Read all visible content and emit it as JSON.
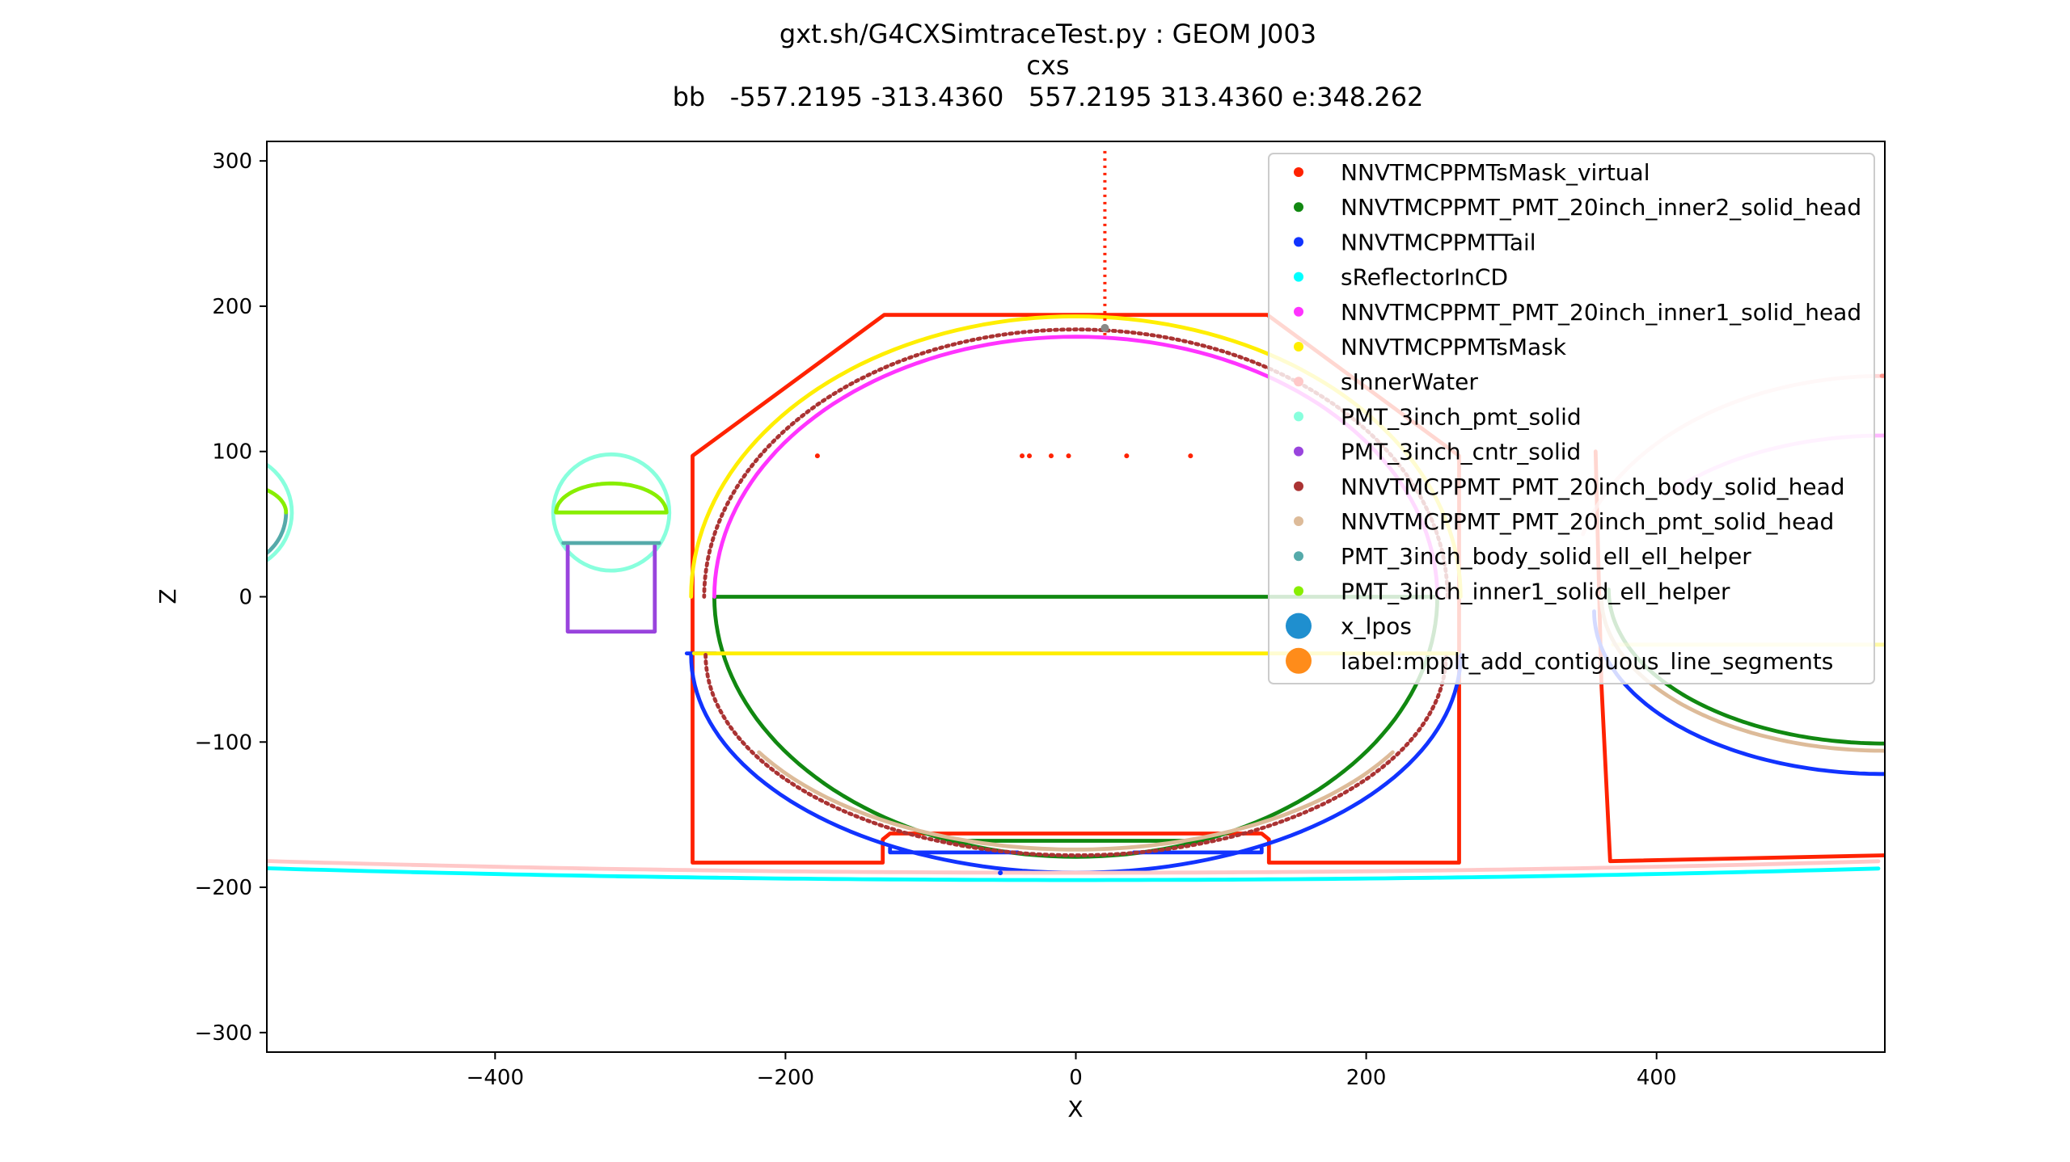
{
  "chart_data": {
    "type": "scatter",
    "title_lines": [
      "gxt.sh/G4CXSimtraceTest.py : GEOM J003",
      "cxs",
      "bb   -557.2195 -313.4360   557.2195 313.4360 e:348.262"
    ],
    "xlabel": "X",
    "ylabel": "Z",
    "xlim": [
      -557.2195,
      557.2195
    ],
    "ylim": [
      -313.436,
      313.436
    ],
    "xticks": [
      -400,
      -200,
      0,
      200,
      400
    ],
    "xtick_labels": [
      "−400",
      "−200",
      "0",
      "200",
      "400"
    ],
    "yticks": [
      -300,
      -200,
      -100,
      0,
      100,
      200,
      300
    ],
    "ytick_labels": [
      "−300",
      "−200",
      "−100",
      "0",
      "100",
      "200",
      "300"
    ],
    "grid": false,
    "legend_position": "top-right",
    "series": [
      {
        "name": "NNVTMCPPMTsMask_virtual",
        "color": "#ff2200",
        "kind": "polyline",
        "width": 2,
        "points": [
          [
            -264,
            -183
          ],
          [
            -264,
            97
          ],
          [
            -132,
            194
          ],
          [
            132,
            194
          ],
          [
            264,
            97
          ],
          [
            264,
            -183
          ],
          [
            133,
            -183
          ],
          [
            133,
            -167
          ],
          [
            128,
            -163
          ],
          [
            -128,
            -163
          ],
          [
            -133,
            -167
          ],
          [
            -133,
            -183
          ],
          [
            -264,
            -183
          ]
        ]
      },
      {
        "name": "NNVTMCPPMTsMask_virtual",
        "color": "#ff2200",
        "kind": "polyline",
        "width": 2,
        "points": [
          [
            358,
            100
          ],
          [
            362,
            -60
          ],
          [
            368,
            -182
          ],
          [
            557,
            -178
          ]
        ]
      },
      {
        "name": "NNVTMCPPMTsMask_virtual",
        "color": "#ff2200",
        "kind": "polyline",
        "width": 2,
        "points": [
          [
            555,
            152
          ],
          [
            557,
            152
          ]
        ]
      },
      {
        "name": "NNVTMCPPMT_PMT_20inch_inner2_solid_head",
        "color": "#118811",
        "kind": "arc",
        "width": 2,
        "cx": 0,
        "cz": 0,
        "rx": 249,
        "rz": 179,
        "start": 180,
        "end": 360
      },
      {
        "name": "NNVTMCPPMT_PMT_20inch_inner2_solid_head",
        "color": "#118811",
        "kind": "polyline",
        "width": 2,
        "points": [
          [
            -249,
            0
          ],
          [
            249,
            0
          ]
        ]
      },
      {
        "name": "NNVTMCPPMT_PMT_20inch_inner2_solid_head",
        "color": "#118811",
        "kind": "polyline",
        "width": 2,
        "points": [
          [
            -86,
            -168
          ],
          [
            86,
            -168
          ]
        ]
      },
      {
        "name": "NNVTMCPPMT_PMT_20inch_inner2_solid_head",
        "color": "#118811",
        "kind": "arc",
        "width": 2,
        "cx": 557,
        "cz": 5,
        "rx": 190,
        "rz": 106,
        "start": 180,
        "end": 270
      },
      {
        "name": "NNVTMCPPMTTail",
        "color": "#1133ff",
        "kind": "arc",
        "width": 2,
        "cx": 0,
        "cz": -40,
        "rx": 265,
        "rz": 150,
        "start": 180,
        "end": 360
      },
      {
        "name": "NNVTMCPPMTTail",
        "color": "#1133ff",
        "kind": "polyline",
        "width": 2,
        "points": [
          [
            -268,
            -39
          ],
          [
            -248,
            -39
          ]
        ]
      },
      {
        "name": "NNVTMCPPMTTail",
        "color": "#1133ff",
        "kind": "polyline",
        "width": 2,
        "points": [
          [
            -128,
            -173
          ],
          [
            -128,
            -176
          ],
          [
            -40,
            -176
          ]
        ]
      },
      {
        "name": "NNVTMCPPMTTail",
        "color": "#1133ff",
        "kind": "polyline",
        "width": 2,
        "points": [
          [
            40,
            -176
          ],
          [
            128,
            -176
          ],
          [
            128,
            -173
          ]
        ]
      },
      {
        "name": "NNVTMCPPMTTail",
        "color": "#1133ff",
        "kind": "arc",
        "width": 2,
        "cx": 557,
        "cz": -10,
        "rx": 200,
        "rz": 112,
        "start": 180,
        "end": 270
      },
      {
        "name": "sReflectorInCD",
        "color": "#00ffff",
        "kind": "curve",
        "width": 2,
        "cx": 0,
        "cz": 19000,
        "r": 19195
      },
      {
        "name": "NNVTMCPPMT_PMT_20inch_inner1_solid_head",
        "color": "#ff33ff",
        "kind": "arc",
        "width": 2,
        "cx": 0,
        "cz": 0,
        "rx": 249,
        "rz": 179,
        "start": 0,
        "end": 180
      },
      {
        "name": "NNVTMCPPMT_PMT_20inch_inner1_solid_head",
        "color": "#ff33ff",
        "kind": "arc",
        "width": 2,
        "alpha": 0.35,
        "cx": 557,
        "cz": 5,
        "rx": 190,
        "rz": 106,
        "start": 90,
        "end": 140
      },
      {
        "name": "NNVTMCPPMTsMask",
        "color": "#ffee00",
        "kind": "arc",
        "width": 2,
        "cx": 0,
        "cz": 0,
        "rx": 265,
        "rz": 193,
        "start": 0,
        "end": 180
      },
      {
        "name": "NNVTMCPPMTsMask",
        "color": "#ffee00",
        "kind": "polyline",
        "width": 2,
        "points": [
          [
            -263,
            -39
          ],
          [
            263,
            -39
          ]
        ]
      },
      {
        "name": "NNVTMCPPMTsMask",
        "color": "#ffee00",
        "kind": "polyline",
        "width": 2,
        "alpha": 0.35,
        "points": [
          [
            370,
            -33
          ],
          [
            557,
            -33
          ]
        ]
      },
      {
        "name": "sInnerWater",
        "color": "#ffc8c8",
        "kind": "curve",
        "width": 2,
        "cx": 0,
        "cz": 19000,
        "r": 19190
      },
      {
        "name": "sInnerWater",
        "color": "#ffc8c8",
        "kind": "arc",
        "width": 2,
        "alpha": 0.7,
        "cx": 557,
        "cz": 5,
        "rx": 215,
        "rz": 147,
        "start": 90,
        "end": 165
      },
      {
        "name": "PMT_3inch_pmt_solid",
        "color": "#88ffdd",
        "kind": "circle",
        "width": 2,
        "cx": -320,
        "cz": 58,
        "r": 40
      },
      {
        "name": "PMT_3inch_pmt_solid",
        "color": "#88ffdd",
        "kind": "circle",
        "width": 2,
        "cx": -580,
        "cz": 58,
        "r": 40
      },
      {
        "name": "PMT_3inch_cntr_solid",
        "color": "#9944dd",
        "kind": "polyline",
        "width": 2,
        "points": [
          [
            -350,
            35
          ],
          [
            -350,
            -24
          ],
          [
            -290,
            -24
          ],
          [
            -290,
            35
          ]
        ]
      },
      {
        "name": "NNVTMCPPMT_PMT_20inch_body_solid_head",
        "color": "#aa3333",
        "kind": "arc",
        "width": 2,
        "dashed": true,
        "cx": 0,
        "cz": 0,
        "rx": 256,
        "rz": 184,
        "start": 0,
        "end": 180
      },
      {
        "name": "NNVTMCPPMT_PMT_20inch_body_solid_head",
        "color": "#aa3333",
        "kind": "arc",
        "width": 2,
        "dashed": true,
        "cx": 0,
        "cz": -40,
        "rx": 255,
        "rz": 138,
        "start": 180,
        "end": 360
      },
      {
        "name": "NNVTMCPPMT_PMT_20inch_pmt_solid_head",
        "color": "#ddbb99",
        "kind": "arc",
        "width": 2,
        "cx": 0,
        "cz": -40,
        "rx": 252,
        "rz": 134,
        "start": 210,
        "end": 330
      },
      {
        "name": "NNVTMCPPMT_PMT_20inch_pmt_solid_head",
        "color": "#ddbb99",
        "kind": "arc",
        "width": 2,
        "cx": 557,
        "cz": 0,
        "rx": 195,
        "rz": 106,
        "start": 180,
        "end": 270
      },
      {
        "name": "PMT_3inch_body_solid_ell_ell_helper",
        "color": "#55aaaa",
        "kind": "polyline",
        "width": 2,
        "points": [
          [
            -353,
            37
          ],
          [
            -287,
            37
          ]
        ]
      },
      {
        "name": "PMT_3inch_body_solid_ell_ell_helper",
        "color": "#55aaaa",
        "kind": "arc",
        "width": 2,
        "cx": -580,
        "cz": 58,
        "rx": 36,
        "rz": 36,
        "start": 300,
        "end": 360
      },
      {
        "name": "PMT_3inch_inner1_solid_ell_helper",
        "color": "#88ee00",
        "kind": "arc",
        "width": 2,
        "cx": -320,
        "cz": 58,
        "rx": 38,
        "rz": 20,
        "start": 0,
        "end": 180
      },
      {
        "name": "PMT_3inch_inner1_solid_ell_helper",
        "color": "#88ee00",
        "kind": "polyline",
        "width": 2,
        "points": [
          [
            -358,
            58
          ],
          [
            -282,
            58
          ]
        ]
      },
      {
        "name": "PMT_3inch_inner1_solid_ell_helper",
        "color": "#88ee00",
        "kind": "arc",
        "width": 2,
        "cx": -580,
        "cz": 58,
        "rx": 36,
        "rz": 20,
        "start": 0,
        "end": 90
      }
    ],
    "points": [
      {
        "name": "NNVTMCPPMTsMask_virtual",
        "color": "#ff2200",
        "xy": [
          [
            -178,
            97
          ],
          [
            -37,
            97
          ],
          [
            -32,
            97
          ],
          [
            -17,
            97
          ],
          [
            -5,
            97
          ],
          [
            35,
            97
          ],
          [
            79,
            97
          ]
        ]
      },
      {
        "name": "NNVTMCPPMTTail",
        "color": "#1133ff",
        "xy": [
          [
            -52,
            -190
          ]
        ]
      }
    ],
    "ray": {
      "name": "NNVTMCPPMTsMask_virtual",
      "color": "#ff2200",
      "x": 20,
      "z0": 180,
      "z1": 310
    },
    "x_lpos": {
      "name": "x_lpos",
      "color": "#888888",
      "x": 20,
      "z": 185
    },
    "legend": [
      {
        "label": "NNVTMCPPMTsMask_virtual",
        "color": "#ff2200",
        "size": "small"
      },
      {
        "label": "NNVTMCPPMT_PMT_20inch_inner2_solid_head",
        "color": "#118811",
        "size": "small"
      },
      {
        "label": "NNVTMCPPMTTail",
        "color": "#1133ff",
        "size": "small"
      },
      {
        "label": "sReflectorInCD",
        "color": "#00ffff",
        "size": "small"
      },
      {
        "label": "NNVTMCPPMT_PMT_20inch_inner1_solid_head",
        "color": "#ff33ff",
        "size": "small"
      },
      {
        "label": "NNVTMCPPMTsMask",
        "color": "#ffee00",
        "size": "small"
      },
      {
        "label": "sInnerWater",
        "color": "#ffc8c8",
        "size": "small"
      },
      {
        "label": "PMT_3inch_pmt_solid",
        "color": "#88ffdd",
        "size": "small"
      },
      {
        "label": "PMT_3inch_cntr_solid",
        "color": "#9944dd",
        "size": "small"
      },
      {
        "label": "NNVTMCPPMT_PMT_20inch_body_solid_head",
        "color": "#aa3333",
        "size": "small"
      },
      {
        "label": "NNVTMCPPMT_PMT_20inch_pmt_solid_head",
        "color": "#ddbb99",
        "size": "small"
      },
      {
        "label": "PMT_3inch_body_solid_ell_ell_helper",
        "color": "#55aaaa",
        "size": "small"
      },
      {
        "label": "PMT_3inch_inner1_solid_ell_helper",
        "color": "#88ee00",
        "size": "small"
      },
      {
        "label": "x_lpos",
        "color": "#1f8fcf",
        "size": "large"
      },
      {
        "label": "label:mpplt_add_contiguous_line_segments",
        "color": "#ff8c1a",
        "size": "large"
      }
    ]
  }
}
